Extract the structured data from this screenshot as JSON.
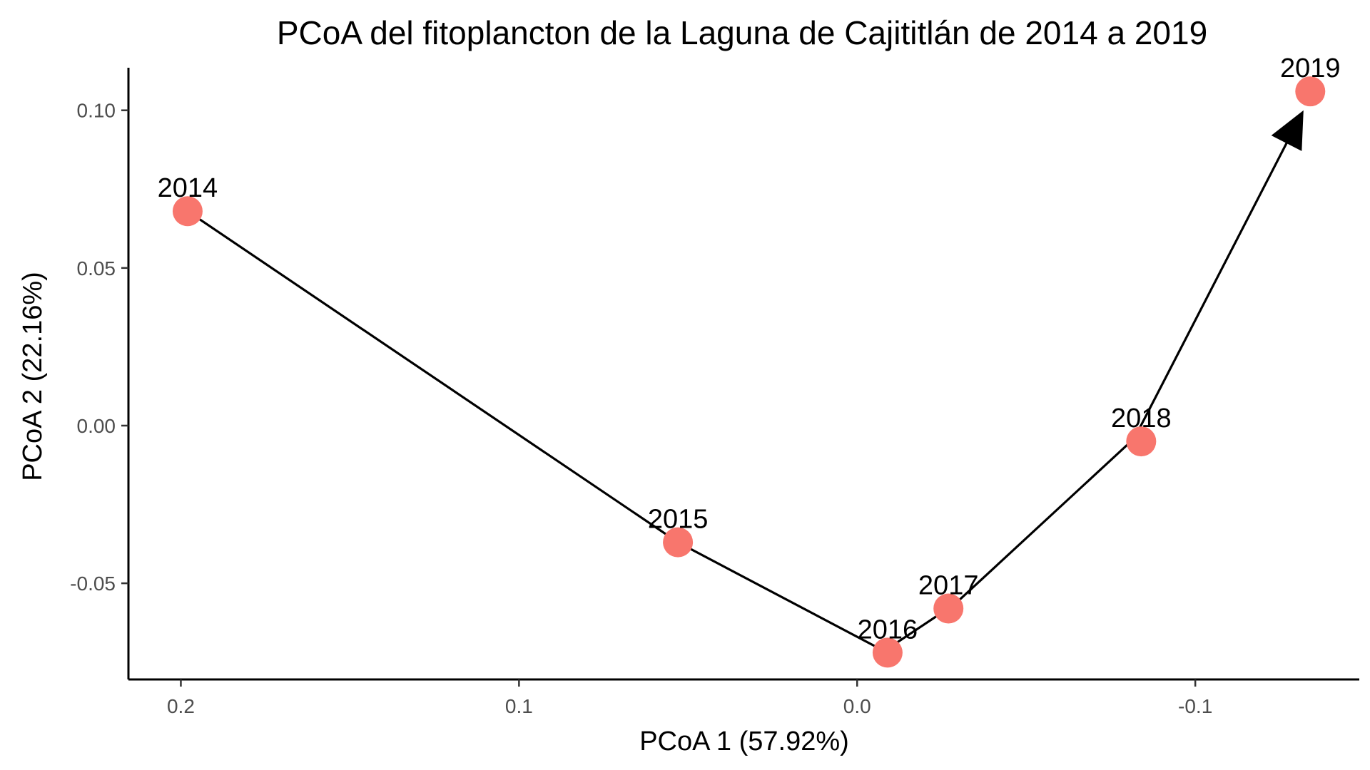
{
  "chart_data": {
    "type": "scatter",
    "title": "PCoA del fitoplancton de la Laguna de Cajititlán de 2014 a 2019",
    "xlabel": "PCoA 1 (57.92%)",
    "ylabel": "PCoA 2 (22.16%)",
    "x_reversed": true,
    "xlim": [
      0.2155,
      -0.1485
    ],
    "ylim": [
      -0.0805,
      0.1135
    ],
    "x_ticks": [
      {
        "value": 0.2,
        "label": "0.2"
      },
      {
        "value": 0.1,
        "label": "0.1"
      },
      {
        "value": 0.0,
        "label": "0.0"
      },
      {
        "value": -0.1,
        "label": "-0.1"
      }
    ],
    "y_ticks": [
      {
        "value": 0.1,
        "label": "0.10"
      },
      {
        "value": 0.05,
        "label": "0.05"
      },
      {
        "value": 0.0,
        "label": "0.00"
      },
      {
        "value": -0.05,
        "label": "-0.05"
      }
    ],
    "grid": false,
    "legend": "none",
    "point_color": "#F8766D",
    "line_color": "#000000",
    "points": [
      {
        "label": "2014",
        "x": 0.198,
        "y": 0.068
      },
      {
        "label": "2015",
        "x": 0.053,
        "y": -0.037
      },
      {
        "label": "2016",
        "x": -0.009,
        "y": -0.072
      },
      {
        "label": "2017",
        "x": -0.027,
        "y": -0.058
      },
      {
        "label": "2018",
        "x": -0.084,
        "y": -0.005
      },
      {
        "label": "2019",
        "x": -0.134,
        "y": 0.106
      }
    ],
    "trajectory": {
      "arrow_end": true,
      "path": [
        {
          "x": 0.198,
          "y": 0.068
        },
        {
          "x": 0.053,
          "y": -0.037
        },
        {
          "x": -0.008,
          "y": -0.0715
        },
        {
          "x": -0.029,
          "y": -0.0565
        },
        {
          "x": -0.082,
          "y": -0.004
        },
        {
          "x": -0.132,
          "y": 0.1
        }
      ]
    }
  }
}
